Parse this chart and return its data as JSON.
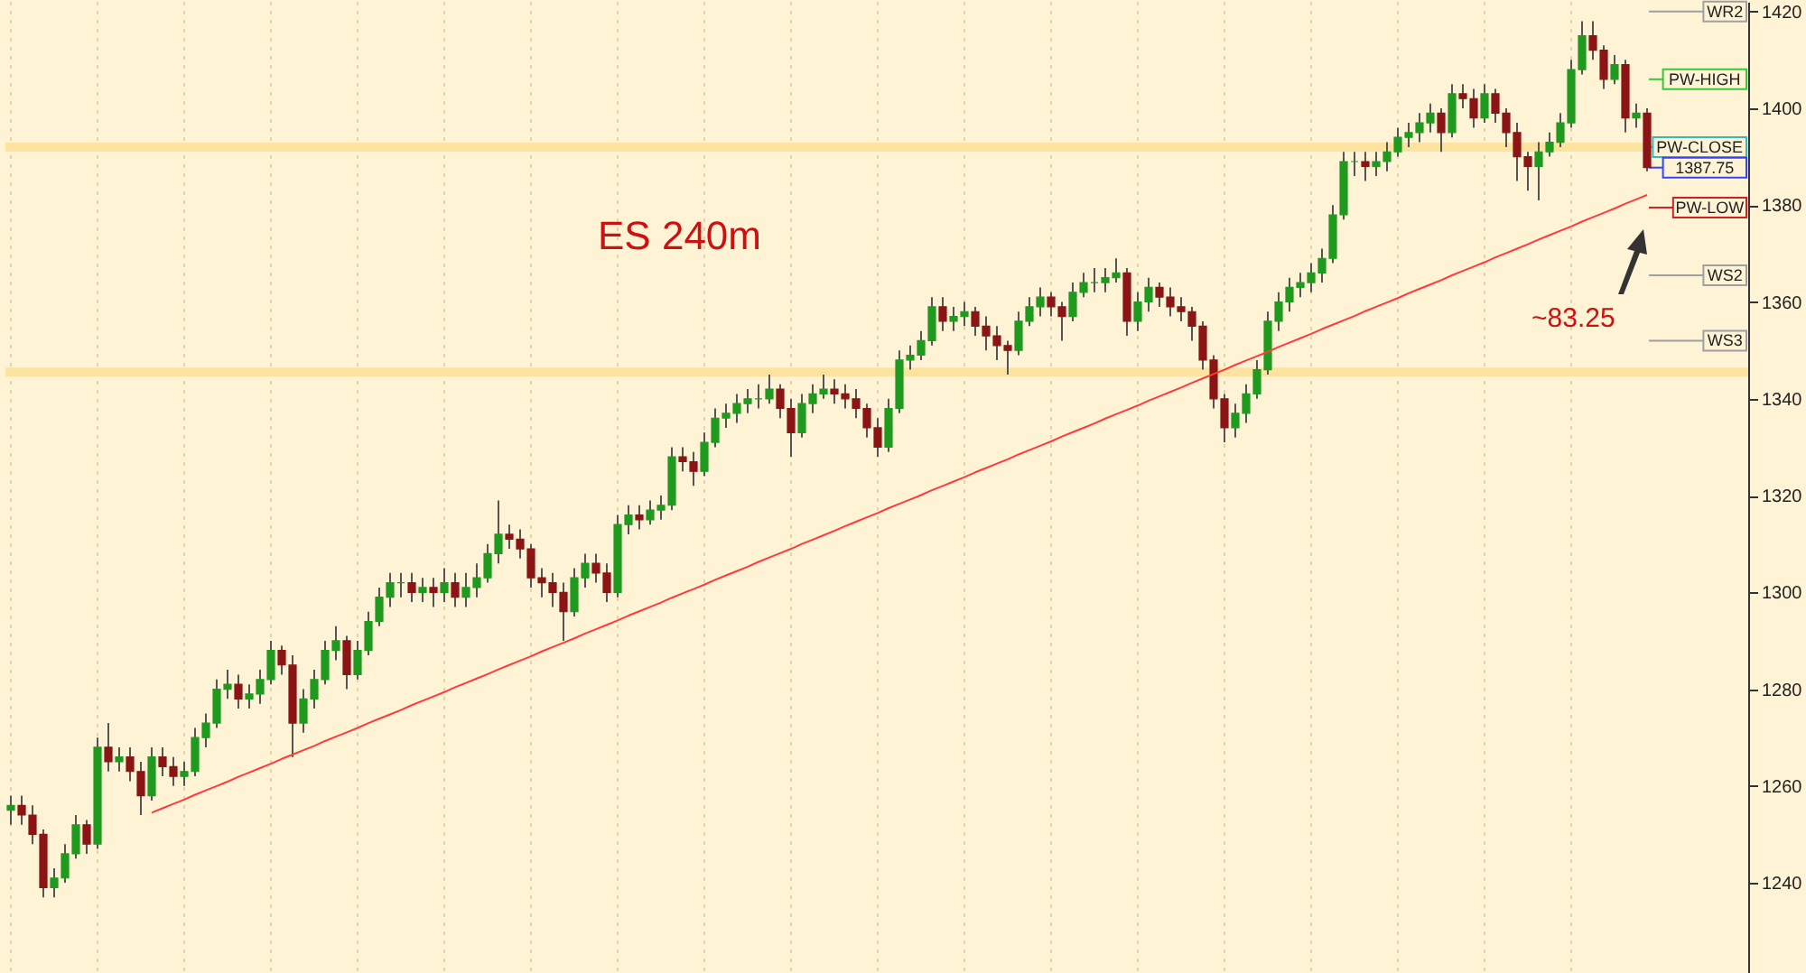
{
  "chart_data": {
    "type": "candlestick",
    "title": "ES 240m",
    "annotations": [
      "~83.25"
    ],
    "categories": [
      null,
      null,
      null,
      null,
      null,
      null,
      null,
      null,
      null,
      null,
      null,
      null,
      null,
      null,
      null,
      null,
      null,
      null,
      null,
      null,
      null,
      null,
      null,
      null,
      null,
      null,
      null,
      null,
      null,
      null,
      null,
      null,
      null,
      null,
      null,
      null,
      null,
      null,
      null,
      null,
      null,
      null,
      null,
      null,
      null,
      null,
      null,
      null,
      null,
      null,
      null,
      null,
      null,
      null,
      null,
      null,
      null,
      null,
      null,
      null,
      null,
      null,
      null,
      null,
      null,
      null,
      null,
      null,
      null,
      null,
      null,
      null,
      null,
      null,
      null,
      null,
      null,
      null,
      null,
      null,
      null,
      null,
      null,
      null,
      null,
      null,
      null,
      null,
      null,
      null,
      null,
      null,
      null,
      null,
      null,
      null,
      null,
      null,
      null,
      null,
      null,
      null,
      null,
      null,
      null,
      null,
      null,
      null,
      null,
      null,
      null,
      null,
      null,
      null,
      null,
      null,
      null,
      null,
      null,
      null,
      null,
      null,
      null,
      null,
      null,
      null,
      null,
      null,
      null,
      null,
      null,
      null,
      null,
      null,
      null,
      null,
      null,
      null,
      null,
      null,
      null,
      null,
      null,
      null,
      null,
      null,
      null,
      null,
      null,
      null,
      null,
      null
    ],
    "colors": [
      "#1f9a1f",
      "#8b1414",
      "#8b1414",
      "#8b1414",
      "#1f9a1f",
      "#1f9a1f",
      "#1f9a1f",
      "#8b1414",
      "#1f9a1f",
      "#8b1414",
      "#1f9a1f",
      "#8b1414",
      "#8b1414",
      "#1f9a1f",
      "#8b1414",
      "#8b1414",
      "#1f9a1f",
      "#1f9a1f",
      "#1f9a1f",
      "#1f9a1f",
      "#1f9a1f",
      "#8b1414",
      "#1f9a1f",
      "#1f9a1f",
      "#1f9a1f",
      "#8b1414",
      "#8b1414",
      "#1f9a1f",
      "#1f9a1f",
      "#1f9a1f",
      "#1f9a1f",
      "#8b1414",
      "#1f9a1f",
      "#1f9a1f",
      "#1f9a1f",
      "#1f9a1f",
      "#1f9a1f",
      "#8b1414",
      "#1f9a1f",
      "#8b1414",
      "#1f9a1f",
      "#8b1414",
      "#1f9a1f",
      "#1f9a1f",
      "#1f9a1f",
      "#1f9a1f",
      "#8b1414",
      "#8b1414",
      "#8b1414",
      "#8b1414",
      "#8b1414",
      "#8b1414",
      "#1f9a1f",
      "#1f9a1f",
      "#8b1414",
      "#8b1414",
      "#1f9a1f",
      "#1f9a1f",
      "#8b1414",
      "#1f9a1f",
      "#1f9a1f",
      "#1f9a1f",
      "#8b1414",
      "#8b1414",
      "#1f9a1f",
      "#1f9a1f",
      "#1f9a1f",
      "#1f9a1f",
      "#1f9a1f",
      "#1f9a1f",
      "#1f9a1f",
      "#8b1414",
      "#8b1414",
      "#1f9a1f",
      "#1f9a1f",
      "#1f9a1f",
      "#8b1414",
      "#8b1414",
      "#8b1414",
      "#8b1414",
      "#8b1414",
      "#1f9a1f",
      "#1f9a1f",
      "#1f9a1f",
      "#1f9a1f",
      "#1f9a1f",
      "#8b1414",
      "#1f9a1f",
      "#1f9a1f",
      "#8b1414",
      "#8b1414",
      "#8b1414",
      "#8b1414",
      "#1f9a1f",
      "#1f9a1f",
      "#1f9a1f",
      "#8b1414",
      "#8b1414",
      "#1f9a1f",
      "#1f9a1f",
      "#1f9a1f",
      "#1f9a1f",
      "#1f9a1f",
      "#8b1414",
      "#1f9a1f",
      "#1f9a1f",
      "#8b1414",
      "#8b1414",
      "#8b1414",
      "#8b1414",
      "#8b1414",
      "#8b1414",
      "#8b1414",
      "#1f9a1f",
      "#1f9a1f",
      "#1f9a1f",
      "#1f9a1f",
      "#1f9a1f",
      "#1f9a1f",
      "#1f9a1f",
      "#1f9a1f",
      "#1f9a1f",
      "#1f9a1f",
      "#1f9a1f",
      "#1f9a1f",
      "#8b1414",
      "#1f9a1f",
      "#1f9a1f",
      "#1f9a1f",
      "#1f9a1f",
      "#1f9a1f",
      "#1f9a1f",
      "#8b1414",
      "#1f9a1f",
      "#8b1414",
      "#8b1414",
      "#1f9a1f",
      "#8b1414",
      "#8b1414",
      "#8b1414",
      "#8b1414",
      "#1f9a1f",
      "#1f9a1f",
      "#1f9a1f",
      "#1f9a1f",
      "#1f9a1f",
      "#8b1414",
      "#8b1414",
      "#1f9a1f",
      "#8b1414",
      "#1f9a1f",
      "#8b1414"
    ],
    "ohlc": [
      [
        1255,
        1258,
        1252,
        1256
      ],
      [
        1256,
        1258,
        1252,
        1254
      ],
      [
        1254,
        1256,
        1248,
        1250
      ],
      [
        1250,
        1251,
        1237,
        1239
      ],
      [
        1239,
        1243,
        1237,
        1241
      ],
      [
        1241,
        1248,
        1240,
        1246
      ],
      [
        1246,
        1254,
        1245,
        1252
      ],
      [
        1252,
        1253,
        1246,
        1248
      ],
      [
        1248,
        1270,
        1247,
        1268
      ],
      [
        1268,
        1273,
        1263,
        1265
      ],
      [
        1265,
        1268,
        1263,
        1266
      ],
      [
        1266,
        1268,
        1261,
        1263
      ],
      [
        1263,
        1265,
        1254,
        1258
      ],
      [
        1258,
        1268,
        1257,
        1266
      ],
      [
        1266,
        1268,
        1262,
        1264
      ],
      [
        1264,
        1266,
        1260,
        1262
      ],
      [
        1262,
        1265,
        1260,
        1263
      ],
      [
        1263,
        1272,
        1262,
        1270
      ],
      [
        1270,
        1275,
        1268,
        1273
      ],
      [
        1273,
        1282,
        1272,
        1280
      ],
      [
        1280,
        1284,
        1278,
        1281
      ],
      [
        1281,
        1283,
        1276,
        1278
      ],
      [
        1278,
        1281,
        1276,
        1279
      ],
      [
        1279,
        1284,
        1277,
        1282
      ],
      [
        1282,
        1290,
        1281,
        1288
      ],
      [
        1288,
        1289,
        1283,
        1285
      ],
      [
        1285,
        1287,
        1266,
        1273
      ],
      [
        1273,
        1280,
        1271,
        1278
      ],
      [
        1278,
        1284,
        1276,
        1282
      ],
      [
        1282,
        1290,
        1281,
        1288
      ],
      [
        1288,
        1293,
        1286,
        1290
      ],
      [
        1290,
        1291,
        1280,
        1283
      ],
      [
        1283,
        1290,
        1282,
        1288
      ],
      [
        1288,
        1296,
        1287,
        1294
      ],
      [
        1294,
        1301,
        1293,
        1299
      ],
      [
        1299,
        1304,
        1297,
        1302
      ],
      [
        1302,
        1304,
        1299,
        1302
      ],
      [
        1302,
        1304,
        1298,
        1300
      ],
      [
        1300,
        1303,
        1298,
        1301
      ],
      [
        1301,
        1303,
        1297,
        1300
      ],
      [
        1300,
        1305,
        1298,
        1302
      ],
      [
        1302,
        1304,
        1297,
        1299
      ],
      [
        1299,
        1304,
        1297,
        1301
      ],
      [
        1301,
        1306,
        1299,
        1303
      ],
      [
        1303,
        1310,
        1302,
        1308
      ],
      [
        1308,
        1319,
        1306,
        1312
      ],
      [
        1312,
        1314,
        1309,
        1311
      ],
      [
        1311,
        1313,
        1307,
        1309
      ],
      [
        1309,
        1310,
        1301,
        1303
      ],
      [
        1303,
        1305,
        1299,
        1302
      ],
      [
        1302,
        1304,
        1297,
        1300
      ],
      [
        1300,
        1302,
        1290,
        1296
      ],
      [
        1296,
        1305,
        1295,
        1303
      ],
      [
        1303,
        1308,
        1301,
        1306
      ],
      [
        1306,
        1308,
        1302,
        1304
      ],
      [
        1304,
        1306,
        1298,
        1300
      ],
      [
        1300,
        1316,
        1299,
        1314
      ],
      [
        1314,
        1318,
        1312,
        1316
      ],
      [
        1316,
        1318,
        1313,
        1315
      ],
      [
        1315,
        1319,
        1314,
        1317
      ],
      [
        1317,
        1320,
        1315,
        1318
      ],
      [
        1318,
        1330,
        1317,
        1328
      ],
      [
        1328,
        1330,
        1325,
        1327
      ],
      [
        1327,
        1329,
        1322,
        1325
      ],
      [
        1325,
        1333,
        1324,
        1331
      ],
      [
        1331,
        1338,
        1330,
        1336
      ],
      [
        1336,
        1339,
        1334,
        1337
      ],
      [
        1337,
        1341,
        1335,
        1339
      ],
      [
        1339,
        1342,
        1337,
        1340
      ],
      [
        1340,
        1343,
        1338,
        1340
      ],
      [
        1340,
        1345,
        1339,
        1342
      ],
      [
        1342,
        1343,
        1336,
        1338
      ],
      [
        1338,
        1340,
        1328,
        1333
      ],
      [
        1333,
        1341,
        1332,
        1339
      ],
      [
        1339,
        1343,
        1337,
        1341
      ],
      [
        1341,
        1345,
        1340,
        1342
      ],
      [
        1342,
        1344,
        1339,
        1341
      ],
      [
        1341,
        1343,
        1338,
        1340
      ],
      [
        1340,
        1342,
        1336,
        1338
      ],
      [
        1338,
        1339,
        1332,
        1334
      ],
      [
        1334,
        1336,
        1328,
        1330
      ],
      [
        1330,
        1340,
        1329,
        1338
      ],
      [
        1338,
        1350,
        1337,
        1348
      ],
      [
        1348,
        1351,
        1346,
        1349
      ],
      [
        1349,
        1354,
        1348,
        1352
      ],
      [
        1352,
        1361,
        1351,
        1359
      ],
      [
        1359,
        1361,
        1354,
        1356
      ],
      [
        1356,
        1359,
        1354,
        1357
      ],
      [
        1357,
        1360,
        1355,
        1358
      ],
      [
        1358,
        1359,
        1353,
        1355
      ],
      [
        1355,
        1357,
        1350,
        1353
      ],
      [
        1353,
        1355,
        1348,
        1351
      ],
      [
        1351,
        1352,
        1345,
        1350
      ],
      [
        1350,
        1358,
        1349,
        1356
      ],
      [
        1356,
        1361,
        1355,
        1359
      ],
      [
        1359,
        1363,
        1357,
        1361
      ],
      [
        1361,
        1362,
        1357,
        1359
      ],
      [
        1359,
        1360,
        1352,
        1357
      ],
      [
        1357,
        1364,
        1356,
        1362
      ],
      [
        1362,
        1366,
        1361,
        1364
      ],
      [
        1364,
        1367,
        1362,
        1364
      ],
      [
        1364,
        1367,
        1362,
        1365
      ],
      [
        1365,
        1369,
        1364,
        1366
      ],
      [
        1366,
        1367,
        1353,
        1356
      ],
      [
        1356,
        1362,
        1354,
        1360
      ],
      [
        1360,
        1365,
        1358,
        1363
      ],
      [
        1363,
        1364,
        1359,
        1361
      ],
      [
        1361,
        1363,
        1357,
        1359
      ],
      [
        1359,
        1361,
        1356,
        1358
      ],
      [
        1358,
        1359,
        1352,
        1355
      ],
      [
        1355,
        1356,
        1346,
        1348
      ],
      [
        1348,
        1349,
        1338,
        1340
      ],
      [
        1340,
        1341,
        1331,
        1334
      ],
      [
        1334,
        1339,
        1332,
        1337
      ],
      [
        1337,
        1343,
        1335,
        1341
      ],
      [
        1341,
        1348,
        1340,
        1346
      ],
      [
        1346,
        1358,
        1345,
        1356
      ],
      [
        1356,
        1362,
        1354,
        1360
      ],
      [
        1360,
        1365,
        1358,
        1363
      ],
      [
        1363,
        1366,
        1361,
        1364
      ],
      [
        1364,
        1368,
        1362,
        1366
      ],
      [
        1366,
        1371,
        1364,
        1369
      ],
      [
        1369,
        1380,
        1368,
        1378
      ],
      [
        1378,
        1391,
        1377,
        1389
      ],
      [
        1389,
        1391,
        1386,
        1389
      ],
      [
        1389,
        1391,
        1385,
        1388
      ],
      [
        1388,
        1391,
        1386,
        1389
      ],
      [
        1389,
        1393,
        1387,
        1391
      ],
      [
        1391,
        1396,
        1390,
        1394
      ],
      [
        1394,
        1397,
        1392,
        1395
      ],
      [
        1395,
        1399,
        1393,
        1397
      ],
      [
        1397,
        1401,
        1395,
        1399
      ],
      [
        1399,
        1400,
        1391,
        1395
      ],
      [
        1395,
        1405,
        1394,
        1403
      ],
      [
        1403,
        1405,
        1400,
        1402
      ],
      [
        1402,
        1404,
        1396,
        1398
      ],
      [
        1398,
        1405,
        1397,
        1403
      ],
      [
        1403,
        1404,
        1397,
        1399
      ],
      [
        1399,
        1400,
        1392,
        1395
      ],
      [
        1395,
        1397,
        1385,
        1390
      ],
      [
        1390,
        1391,
        1383,
        1388
      ],
      [
        1388,
        1393,
        1381,
        1391
      ],
      [
        1391,
        1395,
        1390,
        1393
      ],
      [
        1393,
        1399,
        1392,
        1397
      ],
      [
        1397,
        1410,
        1396,
        1408
      ],
      [
        1408,
        1418,
        1407,
        1415
      ],
      [
        1415,
        1418,
        1410,
        1412
      ],
      [
        1412,
        1413,
        1404,
        1406
      ],
      [
        1406,
        1411,
        1405,
        1409
      ],
      [
        1409,
        1410,
        1395,
        1398
      ],
      [
        1398,
        1401,
        1396,
        1399
      ],
      [
        1399,
        1400,
        1387,
        1387.75
      ]
    ],
    "series": [
      {
        "type": "line",
        "color": "#ff3b3b",
        "values": [
          null,
          null,
          null,
          null,
          null,
          null,
          null,
          null,
          null,
          null,
          null,
          null,
          null,
          1254.5,
          1255.4,
          1256.3,
          1257.2,
          1258.2,
          1259.1,
          1260.0,
          1260.9,
          1261.9,
          1262.8,
          1263.7,
          1264.6,
          1265.6,
          1266.5,
          1267.4,
          1268.3,
          1269.3,
          1270.2,
          1271.1,
          1272.0,
          1273.0,
          1273.9,
          1274.8,
          1275.7,
          1276.7,
          1277.6,
          1278.5,
          1279.4,
          1280.4,
          1281.3,
          1282.2,
          1283.1,
          1284.1,
          1285.0,
          1285.9,
          1286.8,
          1287.8,
          1288.7,
          1289.6,
          1290.5,
          1291.5,
          1292.4,
          1293.3,
          1294.2,
          1295.2,
          1296.1,
          1297.0,
          1297.9,
          1298.9,
          1299.8,
          1300.7,
          1301.6,
          1302.6,
          1303.5,
          1304.4,
          1305.3,
          1306.3,
          1307.2,
          1308.1,
          1309.0,
          1310.0,
          1310.9,
          1311.8,
          1312.7,
          1313.7,
          1314.6,
          1315.5,
          1316.4,
          1317.4,
          1318.3,
          1319.2,
          1320.1,
          1321.1,
          1322.0,
          1322.9,
          1323.8,
          1324.8,
          1325.7,
          1326.6,
          1327.5,
          1328.5,
          1329.4,
          1330.3,
          1331.2,
          1332.2,
          1333.1,
          1334.0,
          1334.9,
          1335.9,
          1336.8,
          1337.7,
          1338.6,
          1339.6,
          1340.5,
          1341.4,
          1342.3,
          1343.3,
          1344.2,
          1345.1,
          1346.0,
          1347.0,
          1347.9,
          1348.8,
          1349.7,
          1350.7,
          1351.6,
          1352.5,
          1353.4,
          1354.4,
          1355.3,
          1356.2,
          1357.1,
          1358.1,
          1359.0,
          1359.9,
          1360.8,
          1361.8,
          1362.7,
          1363.6,
          1364.5,
          1365.5,
          1366.4,
          1367.3,
          1368.2,
          1369.2,
          1370.1,
          1371.0,
          1371.9,
          1372.9,
          1373.8,
          1374.7,
          1375.6,
          1376.6,
          1377.5,
          1378.4,
          1379.3,
          1380.3,
          1381.2,
          1382.1
        ]
      }
    ],
    "ylim": [
      1221,
      1422
    ],
    "yticks": [
      {
        "value": 1240,
        "label": "1240"
      },
      {
        "value": 1260,
        "label": "1260"
      },
      {
        "value": 1280,
        "label": "1280"
      },
      {
        "value": 1300,
        "label": "1300"
      },
      {
        "value": 1320,
        "label": "1320"
      },
      {
        "value": 1340,
        "label": "1340"
      },
      {
        "value": 1360,
        "label": "1360"
      },
      {
        "value": 1380,
        "label": "1380"
      },
      {
        "value": 1400,
        "label": "1400"
      },
      {
        "value": 1420,
        "label": "1420"
      }
    ],
    "tick_labels": "y",
    "grid": "x",
    "ref_lines": [
      {
        "axis": "y",
        "value": 1345.5,
        "color": "#fde3a0"
      },
      {
        "axis": "y",
        "value": 1392,
        "color": "#fde3a0"
      },
      {
        "axis": "y",
        "value": 1420,
        "label": "WR2",
        "color": "#a0a0a0"
      },
      {
        "axis": "y",
        "value": 1406,
        "label": "PW-HIGH",
        "color": "#33cc33"
      },
      {
        "axis": "y",
        "value": 1392,
        "label": "PW-CLOSE",
        "color": "#33bbbb"
      },
      {
        "axis": "y",
        "value": 1387.75,
        "label": "1387.75",
        "color": "#3344ff"
      },
      {
        "axis": "y",
        "value": 1379.5,
        "label": "PW-LOW",
        "color": "#cc2222"
      },
      {
        "axis": "y",
        "value": 1365.5,
        "label": "WS2",
        "color": "#a0a0a0"
      },
      {
        "axis": "y",
        "value": 1352,
        "label": "WS3",
        "color": "#a0a0a0"
      }
    ]
  }
}
